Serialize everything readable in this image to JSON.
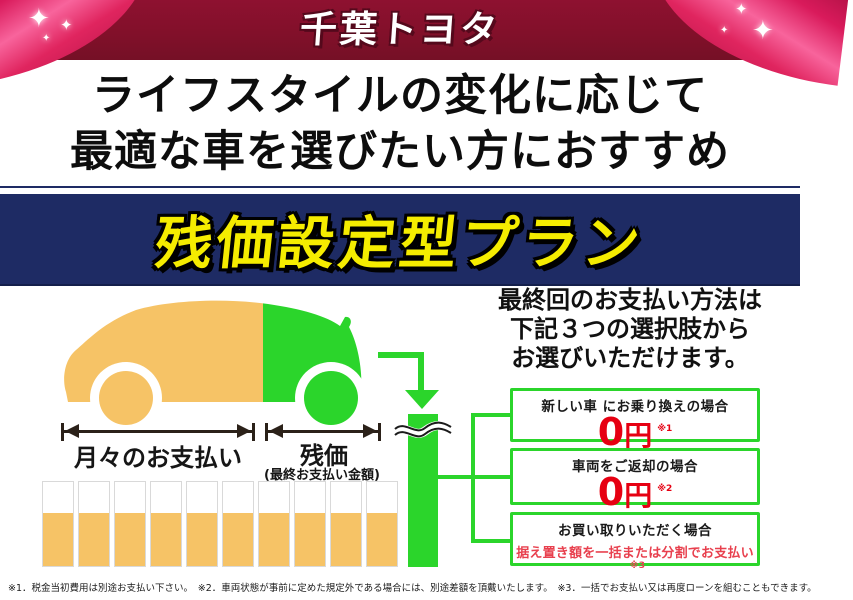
{
  "icons": {
    "sparkle": "✦"
  },
  "colors": {
    "header_bg": "#82102A",
    "ribbon_pink": "#E73A72",
    "banner_navy": "#1E2B64",
    "banner_yellow": "#F5EC00",
    "accent_green": "#2BD52B",
    "accent_orange": "#F6C366",
    "price_red": "#E60012",
    "detail_red": "#E8404E"
  },
  "header": {
    "logo": "千葉トヨタ"
  },
  "headline": {
    "line1": "ライフスタイルの変化に応じて",
    "line2": "最適な車を選びたい方におすすめ"
  },
  "plan_banner": {
    "title": "残価設定型プラン"
  },
  "diagram": {
    "monthly_label": "月々のお支払い",
    "residual_label": "残価",
    "residual_sublabel": "(最終お支払い金額)",
    "bars_count": 10,
    "bar_fill_percent": 63,
    "car_front_color": "#F6C366",
    "car_rear_color": "#2BD52B"
  },
  "payment_options": {
    "intro_lines": [
      "最終回のお支払い方法は",
      "下記３つの選択肢から",
      "お選びいただけます。"
    ],
    "items": [
      {
        "label": "新しい車 にお乗り換えの場合",
        "amount": "0",
        "unit": "円",
        "note": "※1"
      },
      {
        "label": "車両をご返却の場合",
        "amount": "0",
        "unit": "円",
        "note": "※2"
      },
      {
        "label": "お買い取りいただく場合",
        "detail": "据え置き額を一括または分割でお支払い",
        "note": "※3"
      }
    ]
  },
  "footnotes": "※1．税金当初費用は別途お支払い下さい。　※2．車両状態が事前に定めた規定外である場合には、別途差額を頂戴いたします。　※3．一括でお支払い又は再度ローンを組むこともできます。"
}
